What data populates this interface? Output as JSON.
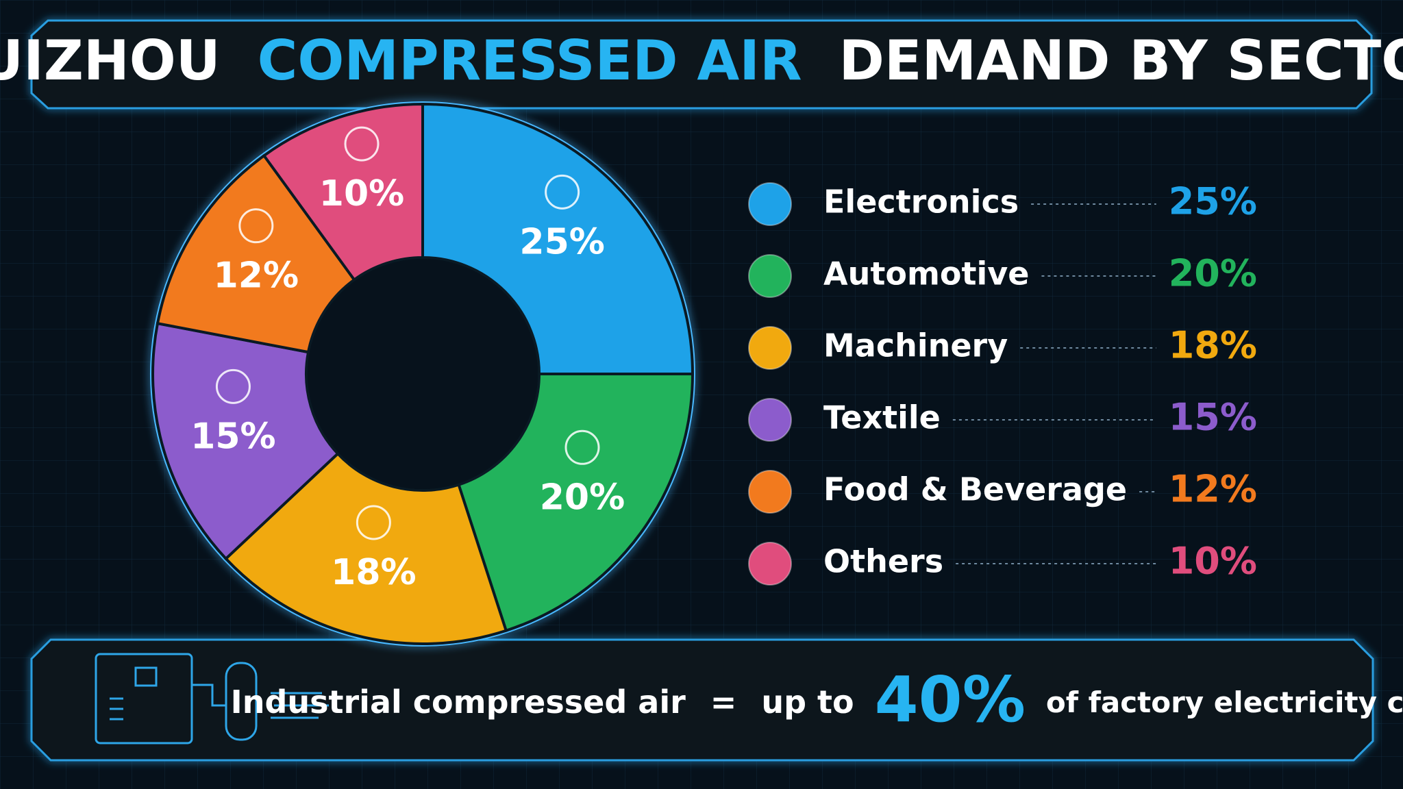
{
  "chart_data": {
    "type": "pie",
    "title": [
      "HUIZHOU",
      "COMPRESSED AIR",
      "DEMAND BY SECTOR"
    ],
    "categories": [
      "Electronics",
      "Automotive",
      "Machinery",
      "Textile",
      "Food & Beverage",
      "Others"
    ],
    "values": [
      25,
      20,
      18,
      15,
      12,
      10
    ],
    "value_labels": [
      "25%",
      "20%",
      "18%",
      "15%",
      "12%",
      "10%"
    ],
    "colors": [
      "#1ea2e8",
      "#22b35c",
      "#f1a90f",
      "#8c5ccc",
      "#f27a1e",
      "#e04d7d"
    ],
    "legend": "right"
  },
  "footer": {
    "lead": "Industrial compressed air",
    "equals": "=",
    "up_to": "up to",
    "value_label": "40%",
    "tail": "of factory electricity cost."
  }
}
